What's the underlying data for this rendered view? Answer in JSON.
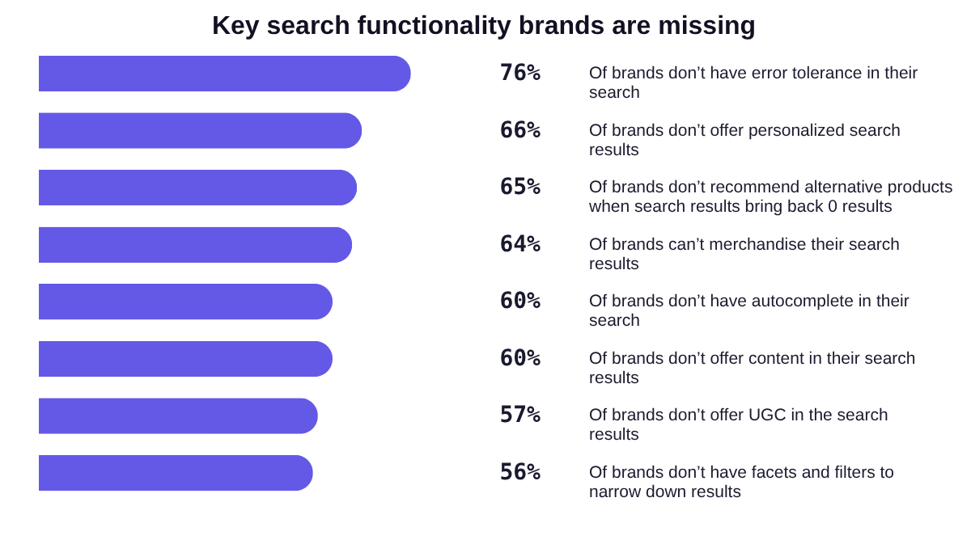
{
  "chart_data": {
    "type": "bar",
    "orientation": "horizontal",
    "title": "Key search functionality brands are missing",
    "categories": [
      "Of brands don’t have error tolerance in their search",
      "Of brands don’t offer personalized search results",
      "Of brands don’t recommend alternative products when search results bring back 0 results",
      "Of brands can’t merchandise their search results",
      "Of brands don’t have autocomplete in their search",
      "Of brands don’t offer content in their search results",
      "Of brands don’t offer UGC in the search results",
      "Of brands don’t have facets and filters to narrow down results"
    ],
    "values": [
      76,
      66,
      65,
      64,
      60,
      60,
      57,
      56
    ],
    "value_labels": [
      "76%",
      "66%",
      "65%",
      "64%",
      "60%",
      "60%",
      "57%",
      "56%"
    ],
    "color": "#6459e6",
    "tick_labels": false,
    "grid": false
  }
}
